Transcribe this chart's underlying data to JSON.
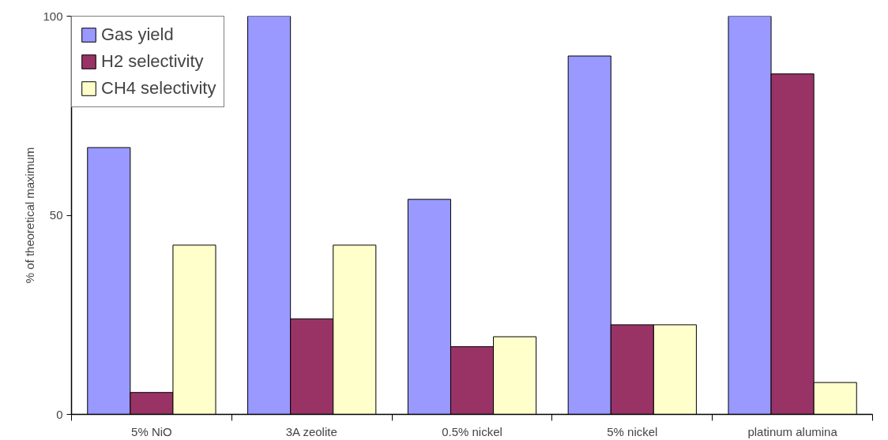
{
  "chart_data": {
    "type": "bar",
    "ylabel": "% of theoretical maximum",
    "categories": [
      "5% NiO",
      "3A zeolite",
      "0.5% nickel",
      "5% nickel",
      "platinum alumina"
    ],
    "series": [
      {
        "name": "Gas yield",
        "color": "#9999ff",
        "values": [
          67,
          100,
          54,
          90,
          100
        ]
      },
      {
        "name": "H2 selectivity",
        "color": "#993366",
        "values": [
          5.5,
          24,
          17,
          22.5,
          85.5
        ]
      },
      {
        "name": "CH4 selectivity",
        "color": "#ffffcc",
        "values": [
          42.5,
          42.5,
          19.5,
          22.5,
          8
        ]
      }
    ],
    "ylim": [
      0,
      100
    ],
    "yticks": [
      0,
      50,
      100
    ],
    "grid": false,
    "legend": "top left"
  }
}
